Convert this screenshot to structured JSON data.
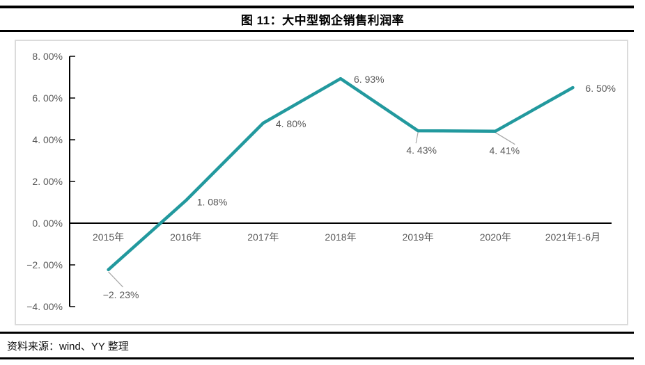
{
  "figure": {
    "title": "图 11：大中型钢企销售利润率"
  },
  "footer": {
    "source": "资料来源：wind、YY 整理"
  },
  "colors": {
    "line": "#22999e",
    "axis": "#000000",
    "tick_label": "#595959",
    "point_label": "#595959",
    "leader": "#a6a6a6",
    "chart_border": "#dbdbdb",
    "rule": "#000000"
  },
  "chart_data": {
    "type": "line",
    "title": "图 11：大中型钢企销售利润率",
    "categories": [
      "2015年",
      "2016年",
      "2017年",
      "2018年",
      "2019年",
      "2020年",
      "2021年1-6月"
    ],
    "values": [
      -2.23,
      1.08,
      4.8,
      6.93,
      4.43,
      4.41,
      6.5
    ],
    "point_labels": [
      "−2. 23%",
      "1. 08%",
      "4. 80%",
      "6. 93%",
      "4. 43%",
      "4. 41%",
      "6. 50%"
    ],
    "ytick_labels": [
      "8. 00%",
      "6. 00%",
      "4. 00%",
      "2. 00%",
      "0. 00%",
      "−2. 00%",
      "−4. 00%"
    ],
    "ylim": [
      -4,
      8
    ],
    "ytick_step": 2,
    "xlabel": "",
    "ylabel": "",
    "grid": false,
    "legend_position": "none"
  }
}
